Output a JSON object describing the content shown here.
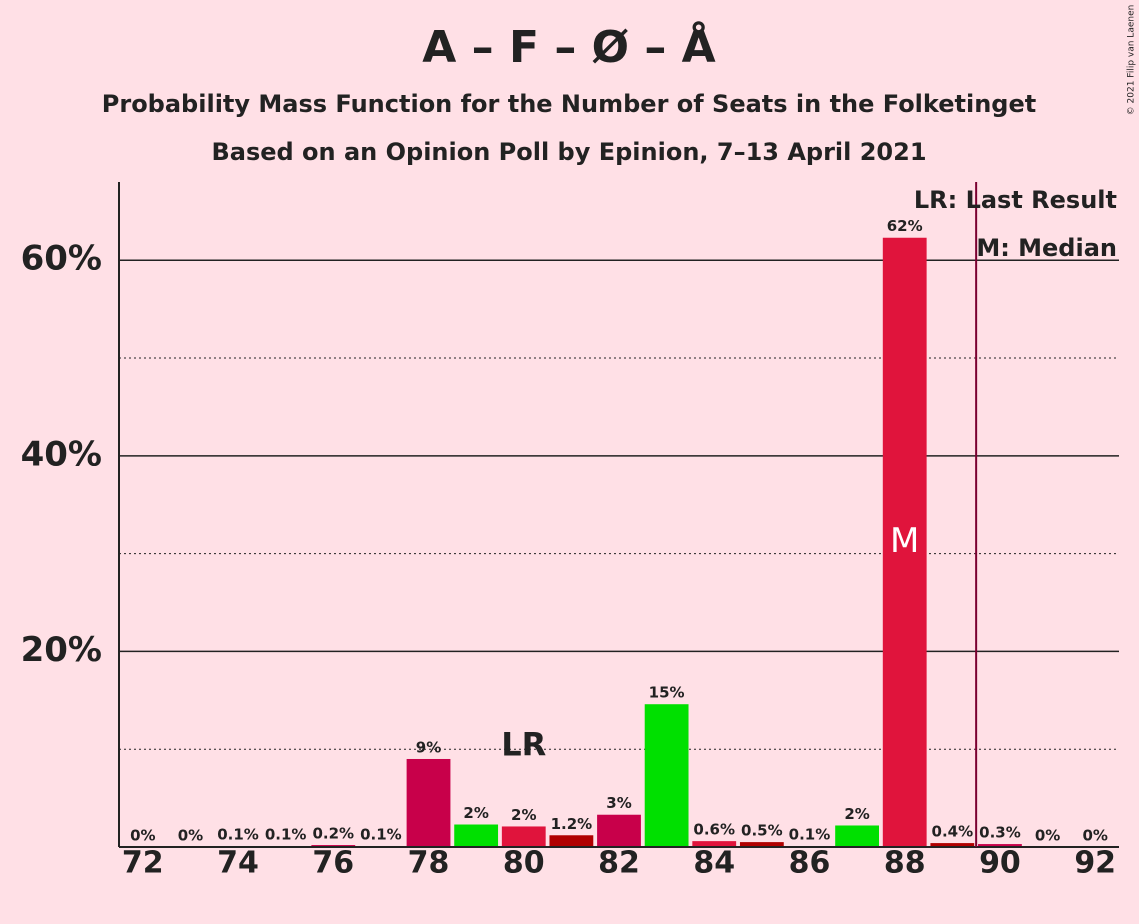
{
  "chart_data": {
    "type": "bar",
    "title": "A – F – Ø – Å",
    "subtitle": "Probability Mass Function for the Number of Seats in the Folketinget",
    "subtitle2": "Based on an Opinion Poll by Epinion, 7–13 April 2021",
    "copyright": "© 2021 Filip van Laenen",
    "x": [
      72,
      73,
      74,
      75,
      76,
      77,
      78,
      79,
      80,
      81,
      82,
      83,
      84,
      85,
      86,
      87,
      88,
      89,
      90,
      91,
      92
    ],
    "values": [
      0,
      0,
      0.1,
      0.1,
      0.2,
      0.1,
      9,
      2.3,
      2.1,
      1.2,
      3.3,
      14.6,
      0.6,
      0.5,
      0.1,
      2.2,
      62.3,
      0.4,
      0.3,
      0,
      0
    ],
    "value_labels": [
      "0%",
      "0%",
      "0.1%",
      "0.1%",
      "0.2%",
      "0.1%",
      "9%",
      "2%",
      "2%",
      "1.2%",
      "3%",
      "15%",
      "0.6%",
      "0.5%",
      "0.1%",
      "2%",
      "62%",
      "0.4%",
      "0.3%",
      "0%",
      "0%"
    ],
    "colors": [
      "#c8004a",
      "#00e000",
      "#e0143c",
      "#b00000",
      "#c8004a",
      "#00e000",
      "#c8004a",
      "#00e000",
      "#e0143c",
      "#b00000",
      "#c8004a",
      "#00e000",
      "#e0143c",
      "#b00000",
      "#c8004a",
      "#00e000",
      "#e0143c",
      "#b00000",
      "#c8004a",
      "#00e000",
      "#e0143c"
    ],
    "xlim": [
      71.5,
      92.5
    ],
    "xticks": [
      72,
      74,
      76,
      78,
      80,
      82,
      84,
      86,
      88,
      90,
      92
    ],
    "ylim": [
      0,
      68
    ],
    "yticks": [
      {
        "value": 20,
        "label": "20%"
      },
      {
        "value": 40,
        "label": "40%"
      },
      {
        "value": 60,
        "label": "60%"
      }
    ],
    "minor_yticks": [
      10,
      30,
      50
    ],
    "last_result": 80,
    "last_result_label": "LR",
    "median": 88,
    "median_label": "M",
    "majority_line": 89.5,
    "legend": [
      "LR: Last Result",
      "M: Median"
    ]
  }
}
